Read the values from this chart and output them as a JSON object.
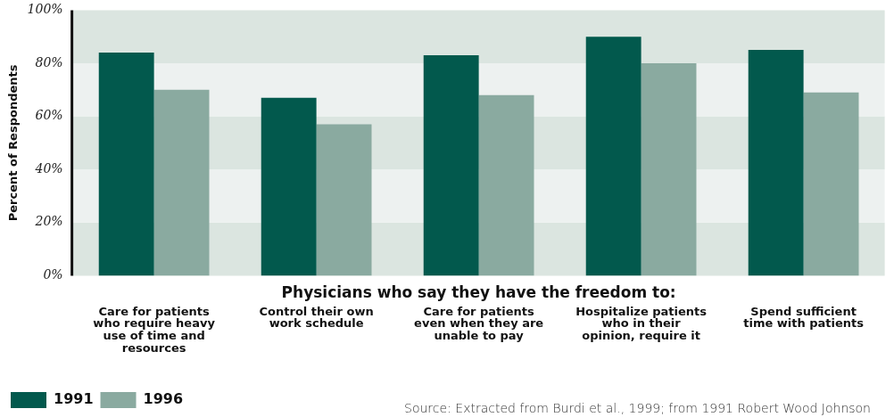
{
  "chart_data": {
    "type": "bar",
    "ylabel": "Percent of Respondents",
    "xlabel": "Physicians who say they have the freedom to:",
    "categories": [
      "Care for patients who require heavy use of time and resources",
      "Control their own work schedule",
      "Care for patients even when they are unable to pay",
      "Hospitalize patients who in their opinion, require it",
      "Spend sufficient time with patients"
    ],
    "series": [
      {
        "name": "1991",
        "color": "#02594d",
        "values": [
          84,
          67,
          83,
          90,
          85
        ]
      },
      {
        "name": "1996",
        "color": "#8aaaa0",
        "values": [
          70,
          57,
          68,
          80,
          69
        ]
      }
    ],
    "ylim": [
      0,
      100
    ],
    "yticks": [
      {
        "value": 0,
        "label": "0%"
      },
      {
        "value": 20,
        "label": "20%"
      },
      {
        "value": 40,
        "label": "40%"
      },
      {
        "value": 60,
        "label": "60%"
      },
      {
        "value": 80,
        "label": "80%"
      },
      {
        "value": 100,
        "label": "100%"
      }
    ],
    "bands": [
      {
        "axis": "y",
        "from": 0,
        "to": 20,
        "color": "#dbe5e0"
      },
      {
        "axis": "y",
        "from": 20,
        "to": 40,
        "color": "#edf1f0"
      },
      {
        "axis": "y",
        "from": 40,
        "to": 60,
        "color": "#dbe5e0"
      },
      {
        "axis": "y",
        "from": 60,
        "to": 80,
        "color": "#edf1f0"
      },
      {
        "axis": "y",
        "from": 80,
        "to": 100,
        "color": "#dbe5e0"
      }
    ],
    "legend": "bottom left",
    "annotations": [
      "Source: Extracted from Burdi et al., 1999; from 1991 Robert Wood Johnson"
    ]
  }
}
